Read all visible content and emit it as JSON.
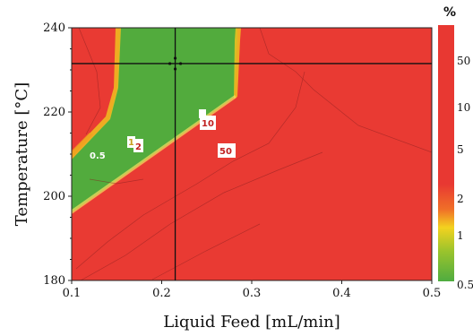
{
  "chart_data": {
    "type": "heatmap",
    "xlabel": "Liquid Feed [mL/min]",
    "ylabel": "Temperature [°C]",
    "xlim": [
      0.1,
      0.5
    ],
    "ylim": [
      180,
      240
    ],
    "x_ticks": [
      "0.1",
      "0.2",
      "0.3",
      "0.4",
      "0.5"
    ],
    "y_ticks": [
      "180",
      "200",
      "220",
      "240"
    ],
    "colorbar": {
      "unit_label": "%",
      "ticks": [
        "50",
        "10",
        "5",
        "2",
        "1",
        "0.5"
      ],
      "colors": [
        "#e83832",
        "#e83832",
        "#e83832",
        "#f0c020",
        "#8cbc30",
        "#4fac40"
      ]
    },
    "region_colors": {
      "low": "#52ab3d",
      "high": "#e93a33"
    },
    "contour_labels": [
      "0.5",
      "1",
      "2",
      "10",
      "50"
    ],
    "crosshair": {
      "x": 0.215,
      "y": 231.5
    }
  }
}
